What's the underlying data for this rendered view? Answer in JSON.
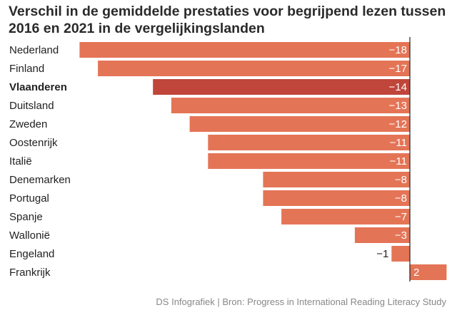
{
  "title": "Verschil in de gemiddelde prestaties voor begrijpend lezen tussen 2016 en 2021 in de vergelijkingslanden",
  "source": "DS Infografiek | Bron: Progress in International Reading Literacy Study",
  "colors": {
    "bar": "#e47456",
    "highlight": "#c0453a",
    "axis": "#222222",
    "label": "#222222",
    "value_inside": "#ffffff",
    "value_outside": "#222222"
  },
  "chart_data": {
    "type": "bar",
    "orientation": "horizontal",
    "title": "Verschil in de gemiddelde prestaties voor begrijpend lezen tussen 2016 en 2021 in de vergelijkingslanden",
    "categories": [
      "Nederland",
      "Finland",
      "Vlaanderen",
      "Duitsland",
      "Zweden",
      "Oostenrijk",
      "Italië",
      "Denemarken",
      "Portugal",
      "Spanje",
      "Wallonië",
      "Engeland",
      "Frankrijk"
    ],
    "values": [
      -18,
      -17,
      -14,
      -13,
      -12,
      -11,
      -11,
      -8,
      -8,
      -7,
      -3,
      -1,
      2
    ],
    "value_labels": [
      "−18",
      "−17",
      "−14",
      "−13",
      "−12",
      "−11",
      "−11",
      "−8",
      "−8",
      "−7",
      "−3",
      "−1",
      "2"
    ],
    "highlight": [
      "Vlaanderen"
    ],
    "xlim": [
      -18,
      2
    ],
    "grid": false
  }
}
